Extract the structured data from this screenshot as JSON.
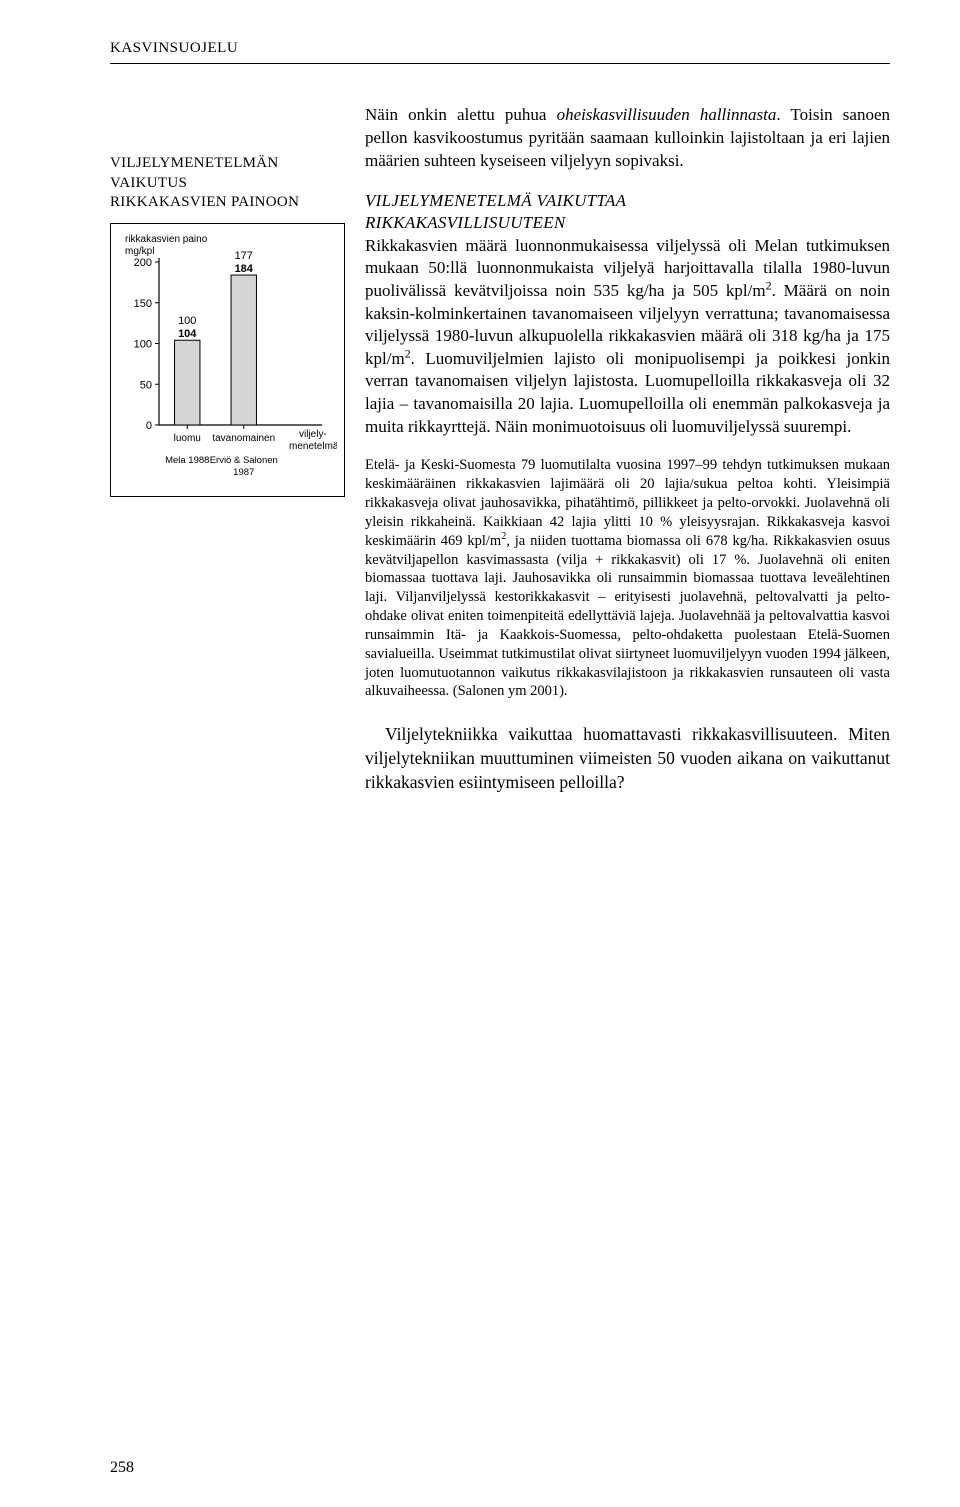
{
  "header": "KASVINSUOJELU",
  "sidebar_heading_line1": "VILJELYMENETELMÄN VAIKUTUS",
  "sidebar_heading_line2": "RIKKAKASVIEN PAINOON",
  "chart": {
    "type": "bar",
    "y_axis_label_line1": "rikkakasvien paino",
    "y_axis_label_line2": "mg/kpl",
    "x_axis_label": "viljely-\nmenetelmä",
    "x_axis_label_line1": "viljely-",
    "x_axis_label_line2": "menetelmä",
    "ylim": [
      0,
      200
    ],
    "ytick_step": 50,
    "yticks": [
      0,
      50,
      100,
      150,
      200
    ],
    "categories": [
      "luomu",
      "tavanomainen"
    ],
    "sources": [
      "Mela 1988",
      "Erviö & Salonen\n1987"
    ],
    "source_lines": [
      [
        "Mela 1988"
      ],
      [
        "Erviö & Salonen",
        "1987"
      ]
    ],
    "bars": [
      {
        "value1": 100,
        "value2": 104
      },
      {
        "value1": 177,
        "value2": 184
      }
    ],
    "bar_width": 0.45,
    "bar_fill": "#d5d5d5",
    "bar_stroke": "#000000",
    "axis_stroke": "#000000",
    "background": "#ffffff",
    "font_family": "Arial",
    "label_fontsize": 10,
    "value_fontsize": 11,
    "value_fontsize_bold": 11,
    "ytick_fontsize": 11
  },
  "intro_para": "Näin onkin alettu puhua oheiskasvillisuuden hallinnasta. Toisin sanoen pellon kasvikoostumus pyritään saamaan kulloinkin lajistoltaan ja eri lajien määrien suhteen kyseiseen viljelyyn sopivaksi.",
  "section_title_line1": "VILJELYMENETELMÄ VAIKUTTAA",
  "section_title_line2": "RIKKAKASVILLISUUTEEN",
  "main_para": "Rikkakasvien määrä luonnonmukaisessa viljelyssä oli Melan tutkimuksen mukaan 50:llä luonnonmukaista viljelyä harjoittavalla tilalla 1980-luvun puolivälissä kevätviljoissa noin 535 kg/ha ja 505 kpl/m². Määrä on noin kaksin-kolminkertainen tavanomaiseen viljelyyn verrattuna; tavanomaisessa viljelyssä 1980-luvun alkupuolella rikkakasvien määrä oli 318 kg/ha ja 175 kpl/m². Luomuviljelmien lajisto oli monipuolisempi ja poikkesi jonkin verran tavanomaisen viljelyn lajistosta. Luomupelloilla rikkakasveja oli 32 lajia – tavanomaisilla 20 lajia. Luomupelloilla oli enemmän palkokasveja ja muita rikkayrttejä. Näin monimuotoisuus oli luomuviljelyssä suurempi.",
  "small_para": "Etelä- ja Keski-Suomesta 79 luomutilalta vuosina 1997–99  tehdyn tutkimuksen mukaan keskimääräinen rikkakasvien lajimäärä oli 20 lajia/sukua peltoa kohti. Yleisimpiä rikkakasveja olivat jauhosavikka, pihatähtimö, pillikkeet ja pelto-orvokki. Juolavehnä oli yleisin rikkaheinä. Kaikkiaan 42 lajia ylitti 10 % yleisyysrajan. Rikkakasveja kasvoi keskimäärin 469 kpl/m², ja niiden tuottama biomassa oli 678 kg/ha. Rikkakasvien osuus kevätviljapellon kasvimassasta (vilja + rikkakasvit) oli 17 %. Juolavehnä oli eniten biomassaa tuottava laji. Jauhosavikka oli runsaimmin biomassaa tuottava leveälehtinen laji. Viljanviljelyssä kestorikkakasvit – erityisesti juolavehnä, peltovalvatti ja pelto-ohdake olivat eniten toimenpiteitä edellyttäviä lajeja. Juolavehnää ja peltovalvattia kasvoi runsaimmin Itä- ja Kaakkois-Suomessa, pelto-ohdaketta puolestaan Etelä-Suomen savialueilla. Useimmat tutkimustilat olivat siirtyneet luomuviljelyyn vuoden 1994 jälkeen, joten luomutuotannon vaikutus rikkakasvilajistoon ja rikkakasvien runsauteen oli vasta alkuvaiheessa. (Salonen ym 2001).",
  "closing_para": "Viljelytekniikka vaikuttaa huomattavasti rikkakasvillisuuteen. Miten viljelytekniikan muuttuminen viimeisten 50 vuoden aikana on vaikuttanut rikkakasvien esiintymiseen pelloilla?",
  "page_number": "258",
  "italic_phrase": "oheiskasvillisuuden hallinnasta"
}
